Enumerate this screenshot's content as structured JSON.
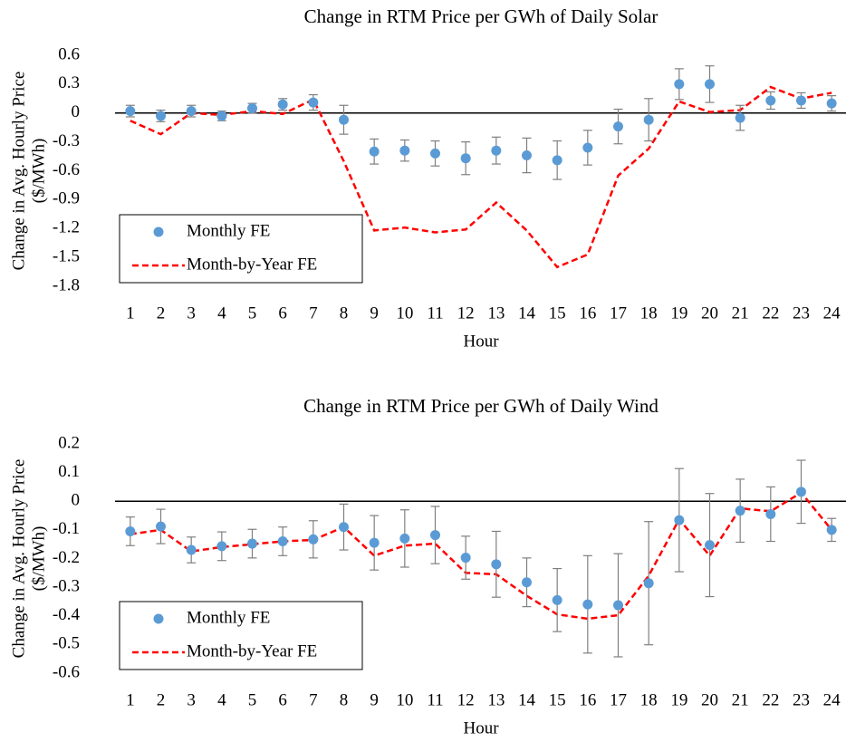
{
  "chart_data": [
    {
      "type": "line",
      "title": "Change in RTM Price per GWh of Daily Solar",
      "ylabel": [
        "Change in Avg. Hourly Price",
        "($/MWh)"
      ],
      "xlabel": "Hour",
      "categories": [
        1,
        2,
        3,
        4,
        5,
        6,
        7,
        8,
        9,
        10,
        11,
        12,
        13,
        14,
        15,
        16,
        17,
        18,
        19,
        20,
        21,
        22,
        23,
        24
      ],
      "ylim": [
        -1.8,
        0.6
      ],
      "yticks": [
        -1.8,
        -1.5,
        -1.2,
        -0.9,
        -0.6,
        -0.3,
        0,
        0.3,
        0.6
      ],
      "legend": "lower left",
      "series": [
        {
          "name": "Monthly FE",
          "color": "#5b9bd5",
          "mode": "markers",
          "values": [
            0.02,
            -0.03,
            0.02,
            -0.03,
            0.05,
            0.09,
            0.11,
            -0.07,
            -0.4,
            -0.39,
            -0.42,
            -0.47,
            -0.39,
            -0.44,
            -0.49,
            -0.36,
            -0.14,
            -0.07,
            0.3,
            0.3,
            -0.05,
            0.13,
            0.13,
            0.1
          ],
          "errors": [
            0.06,
            0.06,
            0.06,
            0.05,
            0.05,
            0.06,
            0.08,
            0.15,
            0.13,
            0.11,
            0.13,
            0.17,
            0.14,
            0.18,
            0.2,
            0.18,
            0.18,
            0.22,
            0.16,
            0.19,
            0.13,
            0.09,
            0.08,
            0.08
          ]
        },
        {
          "name": "Month-by-Year FE",
          "color": "#ff0000",
          "mode": "dashed",
          "values": [
            -0.08,
            -0.22,
            0.0,
            -0.02,
            0.02,
            -0.01,
            0.14,
            -0.5,
            -1.22,
            -1.19,
            -1.24,
            -1.21,
            -0.93,
            -1.22,
            -1.6,
            -1.47,
            -0.65,
            -0.37,
            0.12,
            0.01,
            0.03,
            0.27,
            0.15,
            0.21
          ]
        }
      ]
    },
    {
      "type": "line",
      "title": "Change in RTM Price per GWh of Daily Wind",
      "ylabel": [
        "Change in Avg. Hourly Price",
        "($/MWh)"
      ],
      "xlabel": "Hour",
      "categories": [
        1,
        2,
        3,
        4,
        5,
        6,
        7,
        8,
        9,
        10,
        11,
        12,
        13,
        14,
        15,
        16,
        17,
        18,
        19,
        20,
        21,
        22,
        23,
        24
      ],
      "ylim": [
        -0.6,
        0.2
      ],
      "yticks": [
        -0.6,
        -0.5,
        -0.4,
        -0.3,
        -0.2,
        -0.1,
        0,
        0.1,
        0.2
      ],
      "legend": "lower left",
      "series": [
        {
          "name": "Monthly FE",
          "color": "#5b9bd5",
          "mode": "markers",
          "values": [
            -0.105,
            -0.088,
            -0.17,
            -0.157,
            -0.148,
            -0.14,
            -0.133,
            -0.09,
            -0.145,
            -0.13,
            -0.118,
            -0.197,
            -0.22,
            -0.283,
            -0.345,
            -0.36,
            -0.363,
            -0.286,
            -0.066,
            -0.153,
            -0.033,
            -0.045,
            0.033,
            -0.1
          ],
          "errors": [
            0.05,
            0.06,
            0.045,
            0.05,
            0.05,
            0.05,
            0.065,
            0.08,
            0.095,
            0.1,
            0.1,
            0.075,
            0.115,
            0.085,
            0.11,
            0.17,
            0.18,
            0.215,
            0.18,
            0.18,
            0.11,
            0.095,
            0.11,
            0.04
          ]
        },
        {
          "name": "Month-by-Year FE",
          "color": "#ff0000",
          "mode": "dashed",
          "values": [
            -0.115,
            -0.1,
            -0.175,
            -0.16,
            -0.15,
            -0.14,
            -0.135,
            -0.09,
            -0.19,
            -0.155,
            -0.148,
            -0.25,
            -0.255,
            -0.33,
            -0.395,
            -0.41,
            -0.398,
            -0.26,
            -0.063,
            -0.19,
            -0.025,
            -0.035,
            0.03,
            -0.1
          ]
        }
      ]
    }
  ]
}
